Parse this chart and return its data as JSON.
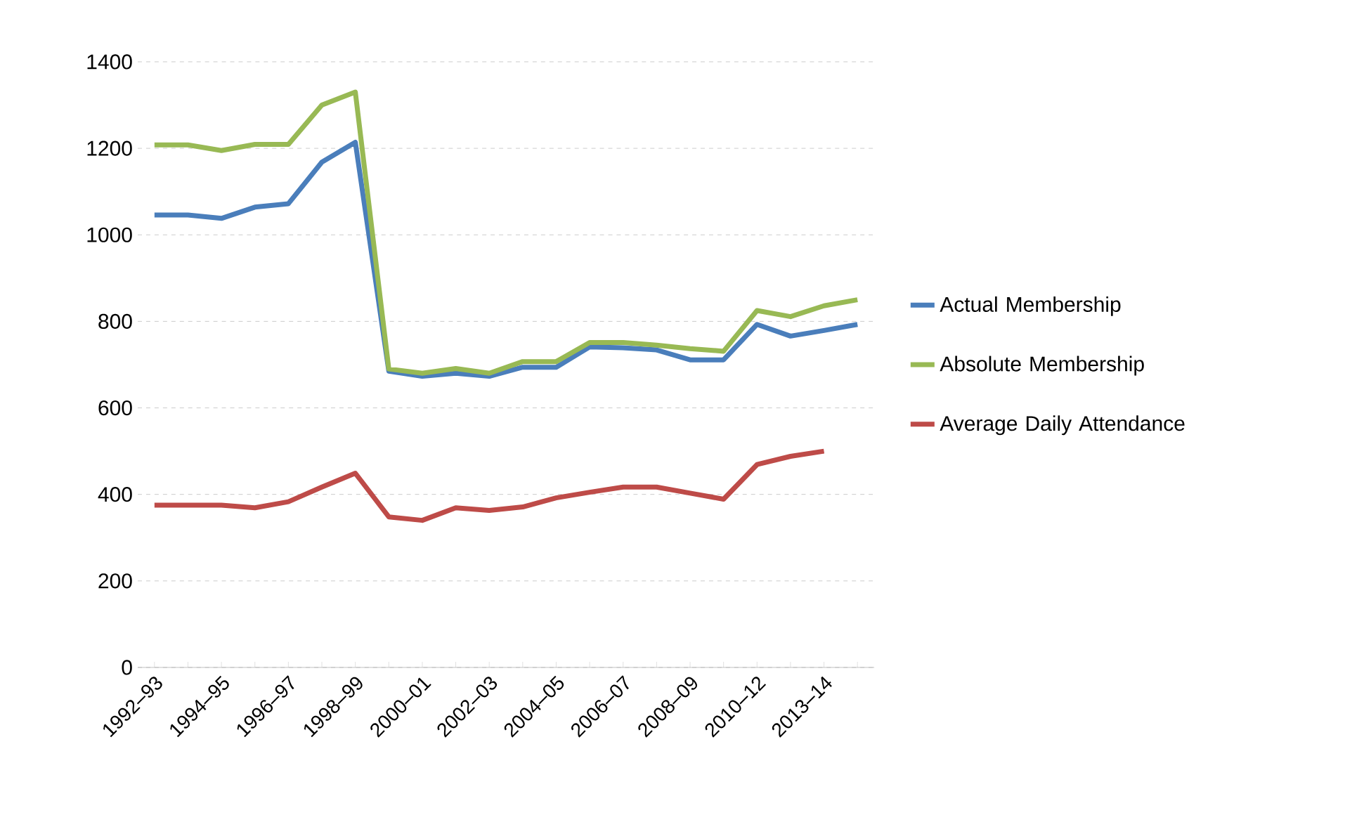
{
  "chart_data": {
    "type": "line",
    "categories": [
      "1992–93",
      null,
      "1994–95",
      null,
      "1996–97",
      null,
      "1998–99",
      null,
      "2000–01",
      null,
      "2002–03",
      null,
      "2004–05",
      null,
      "2006–07",
      null,
      "2008–09",
      null,
      "2010–12",
      null,
      "2013–14",
      null
    ],
    "series": [
      {
        "name": "Actual Membership",
        "color": "#4a7ebb",
        "values": [
          1046,
          1046,
          1038,
          1064,
          1072,
          1168,
          1214,
          685,
          673,
          680,
          673,
          694,
          694,
          741,
          739,
          734,
          711,
          711,
          793,
          766,
          779,
          793
        ]
      },
      {
        "name": "Absolute Membership",
        "color": "#98b954",
        "values": [
          1208,
          1208,
          1195,
          1209,
          1209,
          1300,
          1330,
          690,
          680,
          691,
          680,
          707,
          707,
          751,
          751,
          745,
          737,
          731,
          825,
          811,
          836,
          850
        ]
      },
      {
        "name": "Average Daily Attendance",
        "color": "#be4b48",
        "values": [
          375,
          375,
          375,
          369,
          383,
          417,
          449,
          348,
          340,
          369,
          363,
          371,
          392,
          405,
          417,
          417,
          403,
          389,
          469,
          488,
          500,
          null
        ]
      }
    ],
    "ylim": [
      0,
      1400
    ],
    "yticks": [
      0,
      200,
      400,
      600,
      800,
      1000,
      1200,
      1400
    ],
    "grid": "y",
    "legend": "right",
    "line_style": "solid",
    "marker": "none"
  }
}
